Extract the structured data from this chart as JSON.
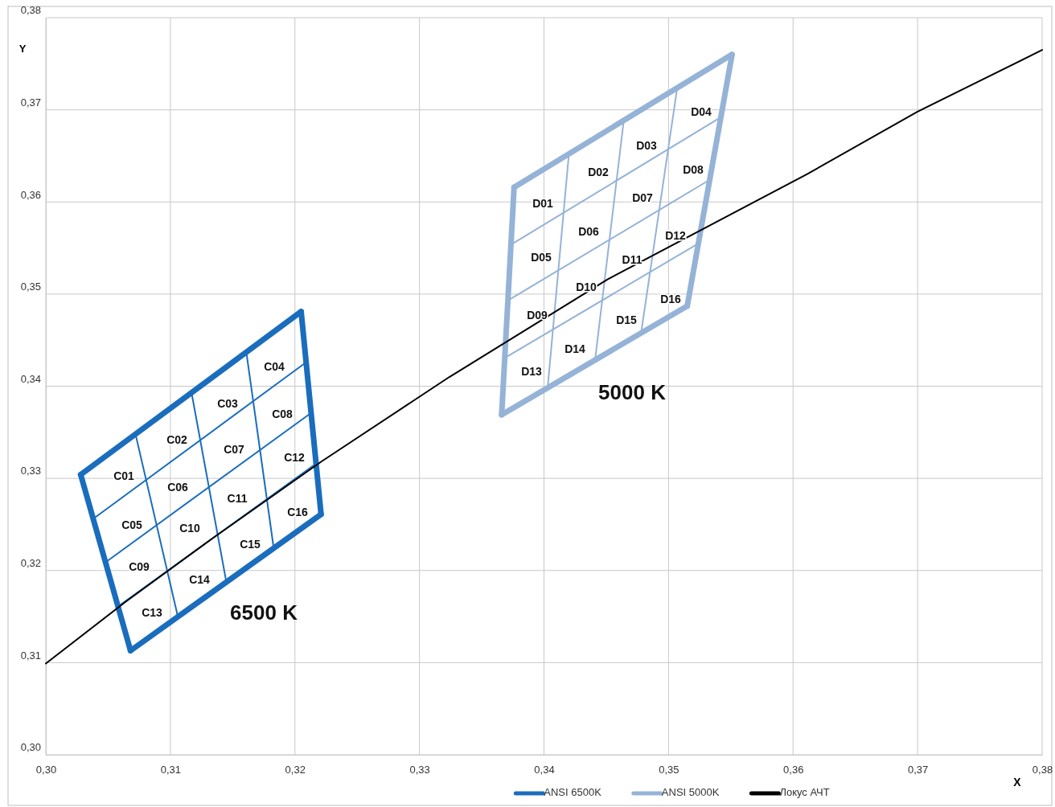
{
  "chart_data": {
    "type": "line",
    "xlabel": "X",
    "ylabel": "Y",
    "xlim": [
      0.3,
      0.38
    ],
    "ylim": [
      0.3,
      0.38
    ],
    "xticks": [
      {
        "value": 0.3,
        "label": "0,30"
      },
      {
        "value": 0.31,
        "label": "0,31"
      },
      {
        "value": 0.32,
        "label": "0,32"
      },
      {
        "value": 0.33,
        "label": "0,33"
      },
      {
        "value": 0.34,
        "label": "0,34"
      },
      {
        "value": 0.35,
        "label": "0,35"
      },
      {
        "value": 0.36,
        "label": "0,36"
      },
      {
        "value": 0.37,
        "label": "0,37"
      },
      {
        "value": 0.38,
        "label": "0,38"
      }
    ],
    "yticks": [
      {
        "value": 0.3,
        "label": "0,30"
      },
      {
        "value": 0.31,
        "label": "0,31"
      },
      {
        "value": 0.32,
        "label": "0,32"
      },
      {
        "value": 0.33,
        "label": "0,33"
      },
      {
        "value": 0.34,
        "label": "0,34"
      },
      {
        "value": 0.35,
        "label": "0,35"
      },
      {
        "value": 0.36,
        "label": "0,36"
      },
      {
        "value": 0.37,
        "label": "0,37"
      },
      {
        "value": 0.38,
        "label": "0,38"
      }
    ],
    "grid": true,
    "legend": "bottom",
    "marker": "none",
    "series": [
      {
        "name": "ANSI 6500K",
        "color": "#1a6dbd",
        "x": [
          0.3028,
          0.3205
        ],
        "values": [
          0.3304,
          0.3481
        ]
      },
      {
        "color": "#1a6dbd",
        "x": [
          0.3205,
          0.3221
        ],
        "values": [
          0.3481,
          0.3261
        ]
      },
      {
        "color": "#1a6dbd",
        "x": [
          0.3068,
          0.3221
        ],
        "values": [
          0.3113,
          0.3261
        ]
      },
      {
        "color": "#1a6dbd",
        "x": [
          0.3028,
          0.3068
        ],
        "values": [
          0.3304,
          0.3113
        ]
      },
      {
        "color": "#1a6dbd",
        "x": [
          0.3038,
          0.3209
        ],
        "values": [
          0.3256,
          0.3426
        ]
      },
      {
        "color": "#1a6dbd",
        "x": [
          0.3048,
          0.3213
        ],
        "values": [
          0.3209,
          0.3371
        ]
      },
      {
        "color": "#1a6dbd",
        "x": [
          0.3058,
          0.3217
        ],
        "values": [
          0.3161,
          0.3316
        ]
      },
      {
        "color": "#1a6dbd",
        "x": [
          0.3072,
          0.3106
        ],
        "values": [
          0.3348,
          0.315
        ]
      },
      {
        "color": "#1a6dbd",
        "x": [
          0.3117,
          0.3145
        ],
        "values": [
          0.3393,
          0.3187
        ]
      },
      {
        "color": "#1a6dbd",
        "x": [
          0.3161,
          0.3183
        ],
        "values": [
          0.3437,
          0.3224
        ]
      },
      {
        "name": "ANSI 5000K",
        "color": "#95b3d7",
        "x": [
          0.3376,
          0.3551
        ],
        "values": [
          0.3616,
          0.376
        ]
      },
      {
        "color": "#95b3d7",
        "x": [
          0.3515,
          0.3551
        ],
        "values": [
          0.3487,
          0.376
        ]
      },
      {
        "color": "#95b3d7",
        "x": [
          0.3366,
          0.3515
        ],
        "values": [
          0.3369,
          0.3487
        ]
      },
      {
        "color": "#95b3d7",
        "x": [
          0.3366,
          0.3376
        ],
        "values": [
          0.3369,
          0.3616
        ]
      },
      {
        "color": "#95b3d7",
        "x": [
          0.3374,
          0.3542
        ],
        "values": [
          0.3554,
          0.3692
        ]
      },
      {
        "color": "#95b3d7",
        "x": [
          0.3371,
          0.3533
        ],
        "values": [
          0.3493,
          0.3624
        ]
      },
      {
        "color": "#95b3d7",
        "x": [
          0.3369,
          0.3524
        ],
        "values": [
          0.3431,
          0.3555
        ]
      },
      {
        "color": "#95b3d7",
        "x": [
          0.3403,
          0.342
        ],
        "values": [
          0.3399,
          0.3652
        ]
      },
      {
        "color": "#95b3d7",
        "x": [
          0.3441,
          0.3464
        ],
        "values": [
          0.3428,
          0.3688
        ]
      },
      {
        "color": "#95b3d7",
        "x": [
          0.3478,
          0.3507
        ],
        "values": [
          0.3458,
          0.3724
        ]
      },
      {
        "name": "Локус АЧТ",
        "color": "#000000",
        "x": [
          0.3,
          0.3064,
          0.3135,
          0.3221,
          0.3324,
          0.3451,
          0.3611,
          0.37,
          0.38
        ],
        "values": [
          0.3099,
          0.3166,
          0.3236,
          0.3318,
          0.341,
          0.3516,
          0.363,
          0.3698,
          0.3765
        ]
      }
    ],
    "annotations": [
      "C01",
      "C02",
      "C03",
      "C04",
      "C05",
      "C06",
      "C07",
      "C08",
      "C09",
      "C10",
      "C11",
      "C12",
      "C13",
      "C14",
      "C15",
      "C16",
      "6500 K",
      "D01",
      "D02",
      "D03",
      "D04",
      "D05",
      "D06",
      "D07",
      "D08",
      "D09",
      "D10",
      "D11",
      "D12",
      "D13",
      "D14",
      "D15",
      "D16",
      "5000 K"
    ]
  }
}
